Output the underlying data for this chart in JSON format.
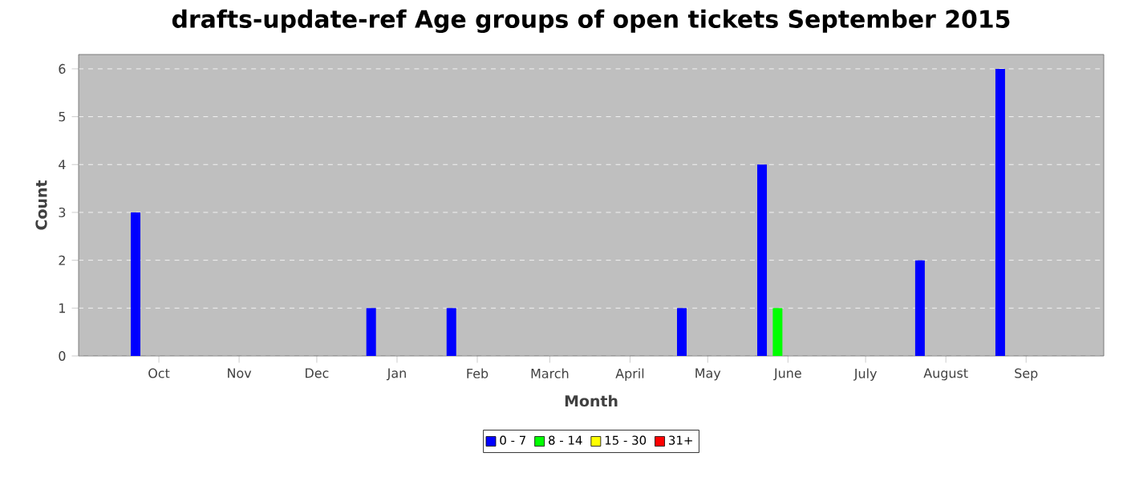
{
  "chart_data": {
    "type": "bar",
    "title": "drafts-update-ref Age groups of open tickets September 2015",
    "xlabel": "Month",
    "ylabel": "Count",
    "series": [
      {
        "name": "0 - 7",
        "color": "#0000ff",
        "x": [
          "2014-09-22",
          "2014-12-22",
          "2015-01-22",
          "2015-04-21",
          "2015-05-22",
          "2015-07-22",
          "2015-08-22"
        ],
        "values": [
          3,
          1,
          1,
          1,
          4,
          2,
          6
        ]
      },
      {
        "name": "8 - 14",
        "color": "#00ff00",
        "x": [
          "2015-05-28"
        ],
        "values": [
          1
        ]
      },
      {
        "name": "15 - 30",
        "color": "#ffff00"
      },
      {
        "name": "31+",
        "color": "#ff0000"
      }
    ],
    "xlim": [
      "2014-08-31",
      "2015-10-01"
    ],
    "xticks": [
      {
        "value": "2014-10-01",
        "label": "Oct"
      },
      {
        "value": "2014-11-01",
        "label": "Nov"
      },
      {
        "value": "2014-12-01",
        "label": "Dec"
      },
      {
        "value": "2015-01-01",
        "label": "Jan"
      },
      {
        "value": "2015-02-01",
        "label": "Feb"
      },
      {
        "value": "2015-03-01",
        "label": "March"
      },
      {
        "value": "2015-04-01",
        "label": "April"
      },
      {
        "value": "2015-05-01",
        "label": "May"
      },
      {
        "value": "2015-06-01",
        "label": "June"
      },
      {
        "value": "2015-07-01",
        "label": "July"
      },
      {
        "value": "2015-08-01",
        "label": "August"
      },
      {
        "value": "2015-09-01",
        "label": "Sep"
      }
    ],
    "ylim": [
      0,
      6.3
    ],
    "yticks": [
      0,
      1,
      2,
      3,
      4,
      5,
      6
    ],
    "grid": "y",
    "legend": "bottom"
  }
}
